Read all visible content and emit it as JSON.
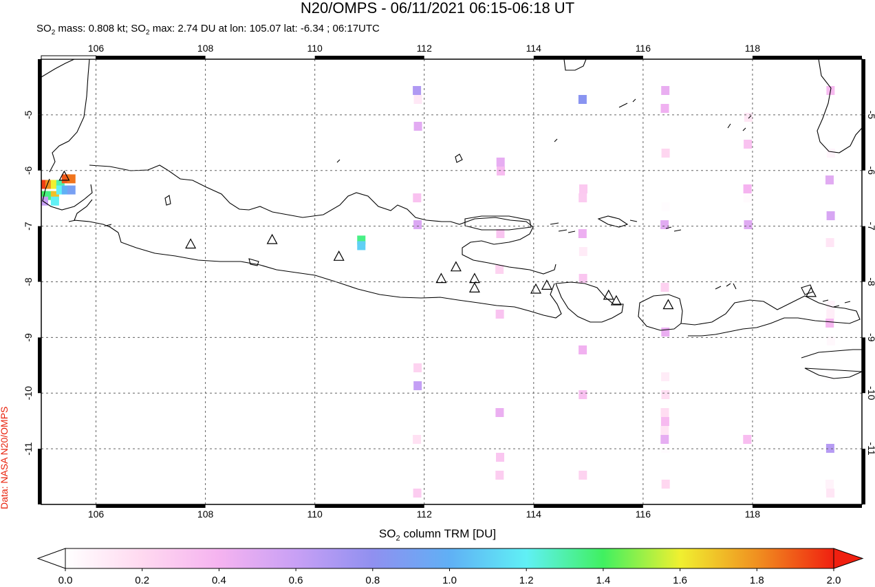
{
  "title": "N20/OMPS - 06/11/2021 06:15-06:18 UT",
  "subtitle": {
    "so2_prefix": "SO",
    "mass_text": " mass: 0.808 kt; SO",
    "max_text": " max: 2.74 DU at lon: 105.07 lat: -6.34 ; 06:17UTC"
  },
  "credit": "Data: NASA N20/OMPS",
  "colorbar": {
    "label_prefix": "SO",
    "label_suffix": " column TRM [DU]",
    "ticks": [
      "0.0",
      "0.2",
      "0.4",
      "0.6",
      "0.8",
      "1.0",
      "1.2",
      "1.4",
      "1.6",
      "1.8",
      "2.0"
    ],
    "colors": [
      "#ffffff",
      "#ffd9f0",
      "#f5b3f0",
      "#c8a0f5",
      "#9090f0",
      "#60b0f5",
      "#60f0f5",
      "#40f060",
      "#f0f030",
      "#f09020",
      "#f02010"
    ]
  },
  "chart_data": {
    "type": "heatmap",
    "title": "N20/OMPS - 06/11/2021 06:15-06:18 UT",
    "xlabel": "",
    "ylabel": "",
    "xlim": [
      105.0,
      120.0
    ],
    "ylim": [
      -12.0,
      -4.0
    ],
    "x_ticks": [
      "106",
      "108",
      "110",
      "112",
      "114",
      "116",
      "118"
    ],
    "y_ticks": [
      "-5",
      "-6",
      "-7",
      "-8",
      "-9",
      "-10",
      "-11"
    ],
    "grid": true,
    "so2_mass_kt": 0.808,
    "so2_max_du": 2.74,
    "max_location": {
      "lon": 105.07,
      "lat": -6.34,
      "time": "06:17UTC"
    },
    "colorbar_range": [
      0.0,
      2.0
    ],
    "hotspot_cells": [
      {
        "lon": 105.05,
        "lat": -6.25,
        "value": 1.95
      },
      {
        "lon": 105.15,
        "lat": -6.25,
        "value": 1.8
      },
      {
        "lon": 105.25,
        "lat": -6.25,
        "value": 1.6
      },
      {
        "lon": 105.35,
        "lat": -6.25,
        "value": 1.3
      },
      {
        "lon": 105.45,
        "lat": -6.15,
        "value": 1.9
      },
      {
        "lon": 105.55,
        "lat": -6.15,
        "value": 1.85
      },
      {
        "lon": 105.05,
        "lat": -6.45,
        "value": 1.4
      },
      {
        "lon": 105.15,
        "lat": -6.45,
        "value": 1.35
      },
      {
        "lon": 105.25,
        "lat": -6.45,
        "value": 1.7
      },
      {
        "lon": 105.35,
        "lat": -6.35,
        "value": 1.2
      },
      {
        "lon": 105.45,
        "lat": -6.35,
        "value": 1.0
      },
      {
        "lon": 105.05,
        "lat": -6.55,
        "value": 0.6
      },
      {
        "lon": 105.25,
        "lat": -6.55,
        "value": 1.2
      },
      {
        "lon": 105.55,
        "lat": -6.35,
        "value": 0.9
      },
      {
        "lon": 110.85,
        "lat": -7.25,
        "value": 1.35
      },
      {
        "lon": 110.85,
        "lat": -7.35,
        "value": 1.1
      }
    ],
    "volcanoes": [
      {
        "lon": 105.42,
        "lat": -6.1
      },
      {
        "lon": 107.73,
        "lat": -7.32
      },
      {
        "lon": 109.22,
        "lat": -7.24
      },
      {
        "lon": 110.44,
        "lat": -7.54
      },
      {
        "lon": 112.31,
        "lat": -7.94
      },
      {
        "lon": 112.58,
        "lat": -7.73
      },
      {
        "lon": 112.92,
        "lat": -7.94
      },
      {
        "lon": 112.92,
        "lat": -8.11
      },
      {
        "lon": 114.04,
        "lat": -8.13
      },
      {
        "lon": 114.24,
        "lat": -8.06
      },
      {
        "lon": 115.37,
        "lat": -8.24
      },
      {
        "lon": 115.51,
        "lat": -8.34
      },
      {
        "lon": 116.46,
        "lat": -8.41
      },
      {
        "lon": 119.07,
        "lat": -8.19
      }
    ]
  }
}
